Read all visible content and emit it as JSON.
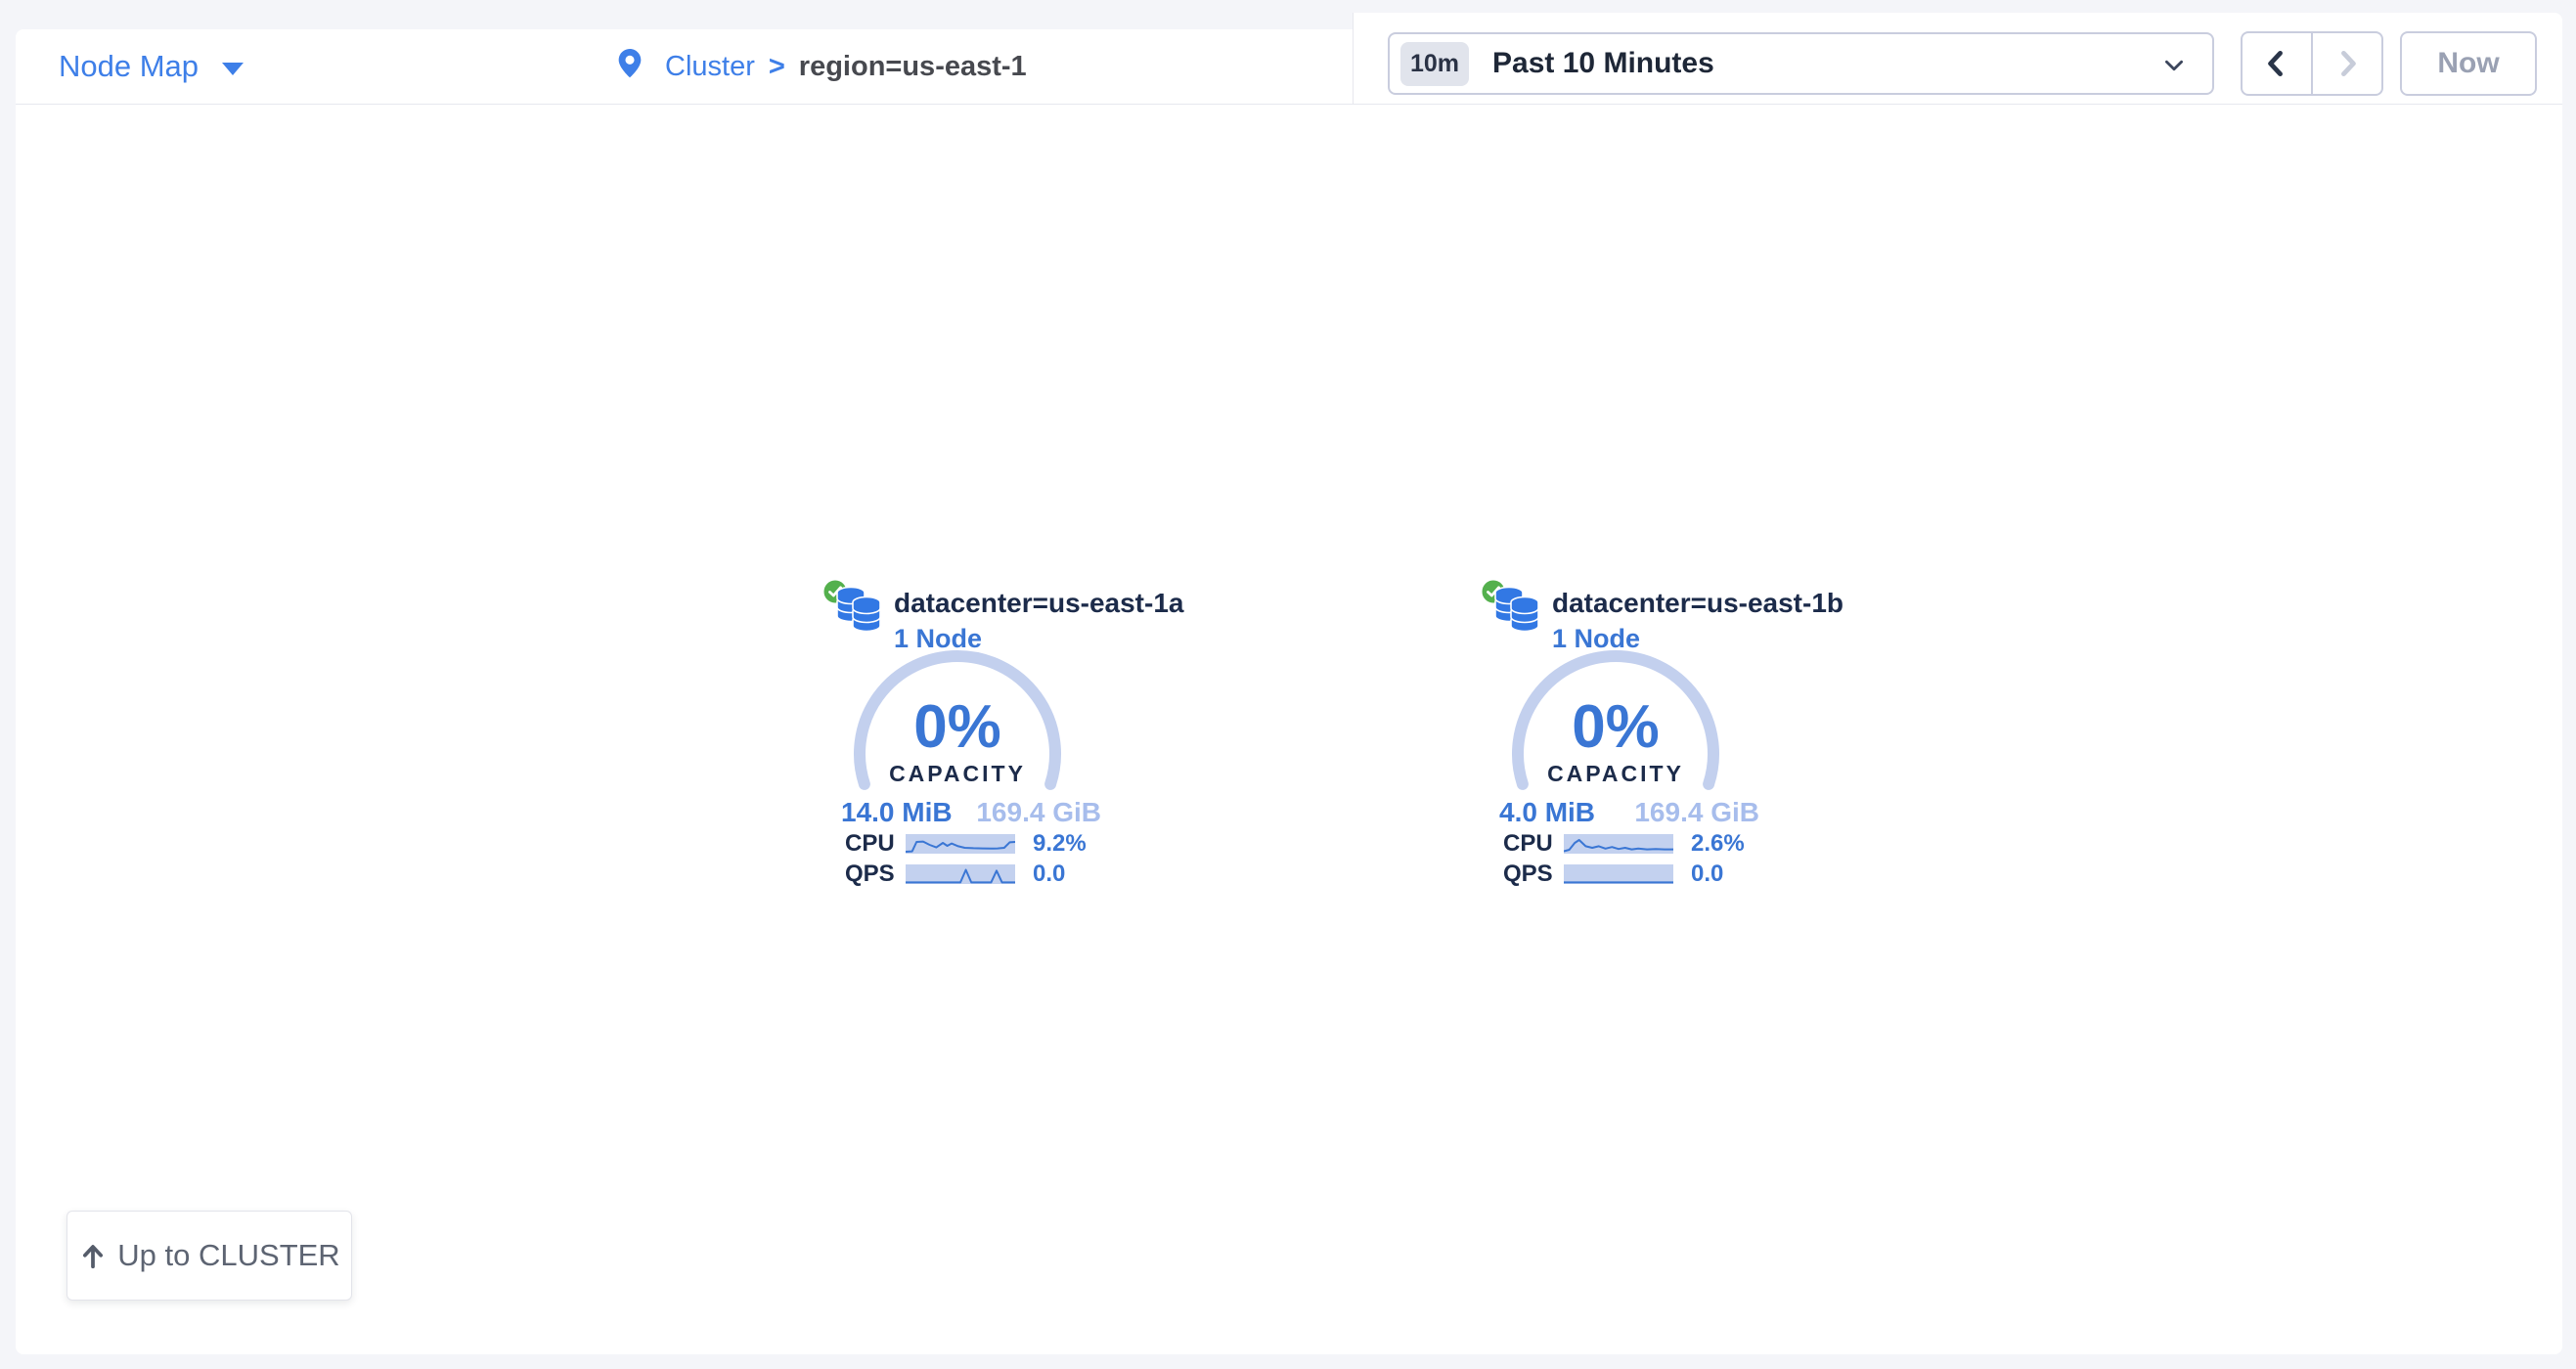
{
  "header": {
    "view_selector": {
      "label": "Node Map"
    },
    "breadcrumb": {
      "root": "Cluster",
      "separator": ">",
      "current": "region=us-east-1"
    },
    "time_selector": {
      "badge": "10m",
      "label": "Past 10 Minutes"
    },
    "nav": {
      "now_label": "Now"
    }
  },
  "cards": [
    {
      "status": "healthy",
      "title": "datacenter=us-east-1a",
      "subtitle": "1 Node",
      "capacity_pct": "0%",
      "capacity_label": "CAPACITY",
      "used": "14.0 MiB",
      "total": "169.4 GiB",
      "metrics": [
        {
          "label": "CPU",
          "value": "9.2%",
          "spark": [
            [
              0,
              90
            ],
            [
              6,
              88
            ],
            [
              10,
              40
            ],
            [
              16,
              38
            ],
            [
              22,
              55
            ],
            [
              28,
              68
            ],
            [
              34,
              45
            ],
            [
              38,
              60
            ],
            [
              42,
              48
            ],
            [
              48,
              62
            ],
            [
              54,
              70
            ],
            [
              62,
              72
            ],
            [
              70,
              73
            ],
            [
              78,
              74
            ],
            [
              84,
              73
            ],
            [
              90,
              70
            ],
            [
              95,
              42
            ],
            [
              100,
              40
            ]
          ]
        },
        {
          "label": "QPS",
          "value": "0.0",
          "spark": [
            [
              0,
              92
            ],
            [
              50,
              92
            ],
            [
              55,
              28
            ],
            [
              60,
              92
            ],
            [
              78,
              92
            ],
            [
              83,
              32
            ],
            [
              88,
              92
            ],
            [
              100,
              92
            ]
          ]
        }
      ]
    },
    {
      "status": "healthy",
      "title": "datacenter=us-east-1b",
      "subtitle": "1 Node",
      "capacity_pct": "0%",
      "capacity_label": "CAPACITY",
      "used": "4.0 MiB",
      "total": "169.4 GiB",
      "metrics": [
        {
          "label": "CPU",
          "value": "2.6%",
          "spark": [
            [
              0,
              88
            ],
            [
              5,
              80
            ],
            [
              10,
              45
            ],
            [
              14,
              30
            ],
            [
              20,
              62
            ],
            [
              26,
              70
            ],
            [
              32,
              62
            ],
            [
              38,
              74
            ],
            [
              44,
              66
            ],
            [
              50,
              76
            ],
            [
              56,
              70
            ],
            [
              62,
              78
            ],
            [
              68,
              74
            ],
            [
              76,
              78
            ],
            [
              84,
              76
            ],
            [
              92,
              78
            ],
            [
              100,
              78
            ]
          ]
        },
        {
          "label": "QPS",
          "value": "0.0",
          "spark": [
            [
              0,
              92
            ],
            [
              100,
              92
            ]
          ]
        }
      ]
    }
  ],
  "footer": {
    "up_button_label": "Up to CLUSTER"
  },
  "icons": {
    "view_caret": "chevron-down",
    "breadcrumb_pin": "location-pin",
    "time_chevron": "chevron-down",
    "prev": "chevron-left",
    "next": "chevron-right",
    "card_status": "check-circle",
    "card_glyph": "database-stack",
    "up_button": "arrow-up"
  },
  "colors": {
    "page-bg": "#f4f5f9",
    "line": "#e7e8ee",
    "accent": "#3e7fe8",
    "blue": "#3a76d4",
    "navy": "#1c2b4a",
    "light-blue": "#a7bdec",
    "arc": "#c3d0ee",
    "spark-bg": "#c3d1ef",
    "ctl-border": "#c9cdde",
    "badge-bg": "#e1e4ec",
    "muted": "#9aa1b3",
    "green": "#54b04d",
    "icon-blue": "#3278e4"
  }
}
